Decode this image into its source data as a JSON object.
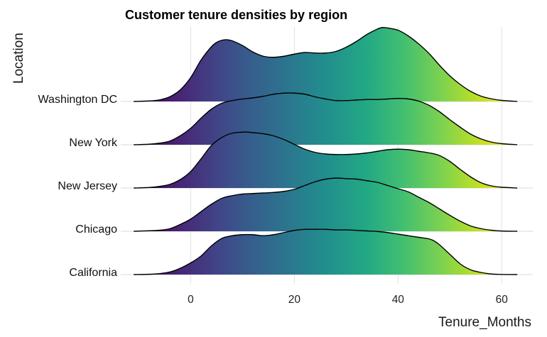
{
  "chart_data": {
    "type": "ridgeline",
    "title": "Customer tenure densities by region",
    "xlabel": "Tenure_Months",
    "ylabel": "Location",
    "xlim": [
      -13.5,
      66
    ],
    "x_ticks": [
      0,
      20,
      40,
      60
    ],
    "fill": "gradient by Tenure_Months (viridis)",
    "grid": true,
    "categories": [
      "California",
      "Chicago",
      "New Jersey",
      "New York",
      "Washington DC"
    ],
    "series": [
      {
        "name": "California",
        "x": [
          -11,
          -7,
          -4,
          -2,
          0,
          2,
          4,
          6,
          8,
          10,
          12,
          14,
          16,
          18,
          20,
          22,
          24,
          26,
          28,
          30,
          32,
          34,
          36,
          38,
          40,
          42,
          44,
          46,
          47,
          48,
          50,
          52,
          54,
          56,
          58,
          60,
          63
        ],
        "density": [
          0,
          0.01,
          0.05,
          0.12,
          0.22,
          0.35,
          0.54,
          0.68,
          0.73,
          0.75,
          0.75,
          0.73,
          0.75,
          0.79,
          0.83,
          0.85,
          0.85,
          0.85,
          0.84,
          0.84,
          0.83,
          0.82,
          0.81,
          0.79,
          0.76,
          0.73,
          0.7,
          0.67,
          0.63,
          0.56,
          0.38,
          0.2,
          0.09,
          0.04,
          0.01,
          0.003,
          0
        ]
      },
      {
        "name": "Chicago",
        "x": [
          -11,
          -8,
          -6,
          -4,
          -2,
          0,
          2,
          4,
          6,
          8,
          10,
          12,
          14,
          16,
          18,
          20,
          22,
          24,
          26,
          28,
          30,
          32,
          34,
          36,
          38,
          40,
          42,
          44,
          46,
          48,
          50,
          52,
          54,
          56,
          58,
          60,
          63
        ],
        "density": [
          0,
          0.01,
          0.02,
          0.05,
          0.13,
          0.23,
          0.37,
          0.51,
          0.62,
          0.67,
          0.7,
          0.71,
          0.72,
          0.73,
          0.75,
          0.79,
          0.86,
          0.93,
          0.98,
          1.0,
          0.99,
          0.98,
          0.95,
          0.92,
          0.86,
          0.8,
          0.74,
          0.64,
          0.54,
          0.42,
          0.3,
          0.19,
          0.1,
          0.05,
          0.02,
          0.005,
          0
        ]
      },
      {
        "name": "New Jersey",
        "x": [
          -11,
          -8,
          -6,
          -4,
          -2,
          0,
          2,
          4,
          6,
          8,
          10,
          11,
          12,
          14,
          16,
          18,
          20,
          22,
          24,
          26,
          28,
          30,
          32,
          34,
          36,
          38,
          40,
          42,
          44,
          46,
          48,
          50,
          52,
          54,
          56,
          58,
          60,
          63
        ],
        "density": [
          0,
          0.01,
          0.03,
          0.07,
          0.16,
          0.31,
          0.55,
          0.8,
          0.95,
          1.03,
          1.05,
          1.05,
          1.04,
          1.02,
          0.98,
          0.91,
          0.82,
          0.73,
          0.67,
          0.64,
          0.63,
          0.63,
          0.64,
          0.66,
          0.69,
          0.72,
          0.73,
          0.72,
          0.69,
          0.66,
          0.61,
          0.5,
          0.35,
          0.21,
          0.1,
          0.04,
          0.015,
          0
        ]
      },
      {
        "name": "New York",
        "x": [
          -11,
          -8,
          -6,
          -4,
          -2,
          0,
          2,
          4,
          6,
          8,
          10,
          12,
          14,
          16,
          18,
          20,
          22,
          24,
          26,
          28,
          30,
          32,
          34,
          36,
          38,
          40,
          42,
          44,
          46,
          48,
          50,
          52,
          54,
          56,
          58,
          60,
          63
        ],
        "density": [
          0,
          0.01,
          0.03,
          0.07,
          0.17,
          0.31,
          0.5,
          0.67,
          0.78,
          0.83,
          0.86,
          0.88,
          0.91,
          0.95,
          0.97,
          0.97,
          0.95,
          0.9,
          0.86,
          0.83,
          0.83,
          0.84,
          0.85,
          0.85,
          0.86,
          0.87,
          0.86,
          0.82,
          0.74,
          0.62,
          0.47,
          0.33,
          0.2,
          0.11,
          0.05,
          0.02,
          0
        ]
      },
      {
        "name": "Washington DC",
        "x": [
          -11,
          -8,
          -6,
          -4,
          -2,
          0,
          2,
          4,
          5,
          6,
          7,
          8,
          10,
          12,
          14,
          16,
          18,
          20,
          22,
          24,
          26,
          28,
          30,
          32,
          34,
          36,
          37,
          38,
          40,
          42,
          44,
          46,
          48,
          50,
          52,
          54,
          56,
          58,
          60,
          63
        ],
        "density": [
          0,
          0.01,
          0.03,
          0.09,
          0.22,
          0.45,
          0.78,
          1.03,
          1.11,
          1.15,
          1.16,
          1.14,
          1.05,
          0.93,
          0.85,
          0.83,
          0.85,
          0.89,
          0.92,
          0.91,
          0.91,
          0.94,
          1.02,
          1.13,
          1.26,
          1.36,
          1.39,
          1.38,
          1.34,
          1.23,
          1.08,
          0.9,
          0.68,
          0.48,
          0.32,
          0.19,
          0.1,
          0.05,
          0.02,
          0
        ]
      }
    ]
  }
}
